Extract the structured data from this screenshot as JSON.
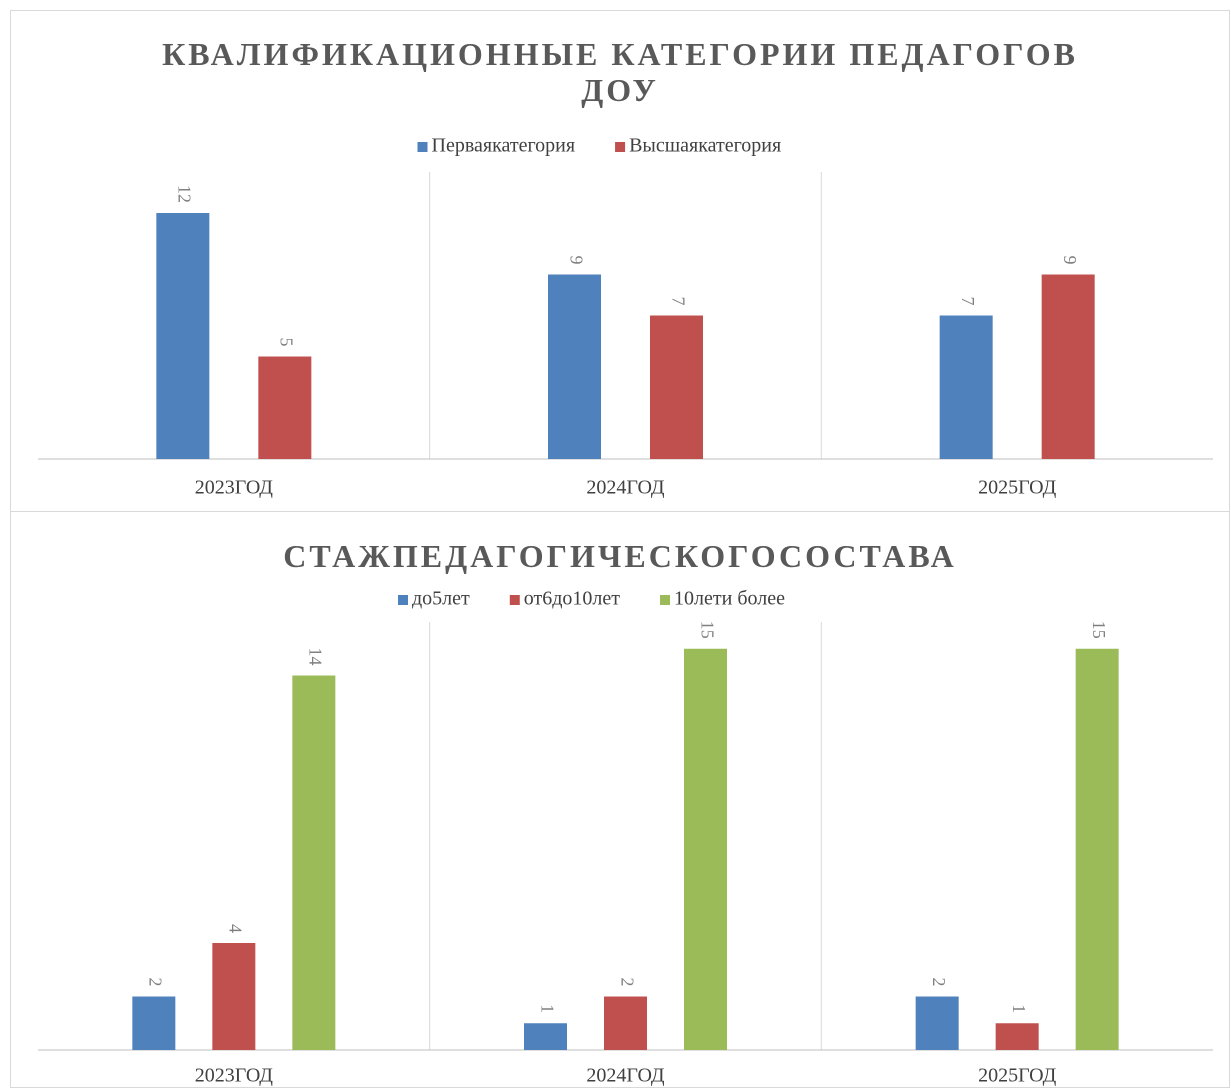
{
  "chart_data": [
    {
      "type": "bar",
      "title": "КВАЛИФИКАЦИОННЫЕ КАТЕГОРИИ ПЕДАГОГОВ ДОУ",
      "categories": [
        "2023ГОД",
        "2024ГОД",
        "2025ГОД"
      ],
      "series": [
        {
          "name": "Перваякатегория",
          "color": "#4f81bd",
          "values": [
            12,
            9,
            7
          ]
        },
        {
          "name": "Высшаякатегория",
          "color": "#c0504d",
          "values": [
            5,
            7,
            9
          ]
        }
      ],
      "ylim": [
        0,
        14
      ],
      "legend": "top"
    },
    {
      "type": "bar",
      "title": "СТАЖПЕДАГОГИЧЕСКОГОСОСТАВА",
      "categories": [
        "2023ГОД",
        "2024ГОД",
        "2025ГОД"
      ],
      "series": [
        {
          "name": "до5лет",
          "color": "#4f81bd",
          "values": [
            2,
            1,
            2
          ]
        },
        {
          "name": "от6до10лет",
          "color": "#c0504d",
          "values": [
            4,
            2,
            1
          ]
        },
        {
          "name": "10лети более",
          "color": "#9bbb59",
          "values": [
            14,
            15,
            15
          ]
        }
      ],
      "ylim": [
        0,
        16
      ],
      "legend": "top"
    }
  ]
}
